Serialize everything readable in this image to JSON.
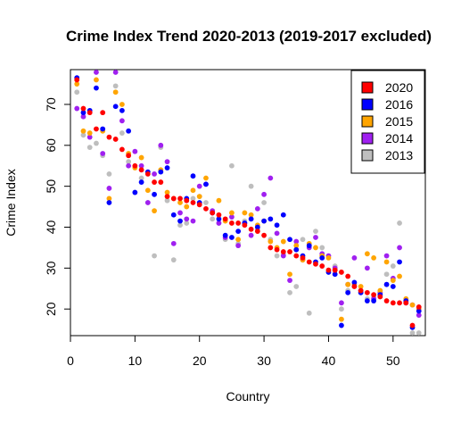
{
  "chart_data": {
    "type": "scatter",
    "title": "Crime Index Trend 2020-2013 (2019-2017 excluded)",
    "xlabel": "Country",
    "ylabel": "Crime Index",
    "xlim": [
      0,
      55
    ],
    "ylim": [
      13.5,
      78.5
    ],
    "x_ticks": [
      0,
      10,
      20,
      30,
      40,
      50
    ],
    "y_ticks": [
      20,
      30,
      40,
      50,
      60,
      70
    ],
    "grid": false,
    "legend_position": "top-right",
    "series": [
      {
        "name": "2020",
        "color": "#ff0000",
        "x": [
          1,
          2,
          3,
          4,
          5,
          6,
          7,
          8,
          9,
          10,
          11,
          12,
          13,
          14,
          15,
          16,
          17,
          18,
          19,
          20,
          21,
          22,
          23,
          24,
          25,
          26,
          27,
          28,
          29,
          30,
          31,
          32,
          33,
          34,
          35,
          36,
          37,
          38,
          39,
          40,
          41,
          42,
          43,
          44,
          45,
          46,
          47,
          48,
          49,
          50,
          51,
          52,
          53,
          54
        ],
        "values": [
          76,
          69,
          68,
          64,
          68,
          62,
          61.5,
          59,
          57.5,
          55,
          54,
          53,
          51,
          51,
          47.5,
          47,
          47,
          46.5,
          46,
          45.5,
          44.5,
          43.5,
          43,
          42,
          41,
          41,
          40.5,
          39.5,
          39,
          38,
          35,
          34.5,
          34,
          34,
          33,
          32.5,
          31.5,
          31,
          30.5,
          29.5,
          29.5,
          29,
          28,
          25.5,
          24.5,
          24,
          23.5,
          23,
          22,
          21.5,
          21.5,
          21.5,
          16,
          20.5
        ]
      },
      {
        "name": "2016",
        "color": "#0000ff",
        "x": [
          1,
          2,
          3,
          4,
          5,
          6,
          7,
          8,
          9,
          10,
          11,
          12,
          13,
          14,
          15,
          16,
          17,
          18,
          19,
          20,
          21,
          22,
          23,
          24,
          25,
          26,
          27,
          28,
          29,
          30,
          31,
          32,
          33,
          34,
          35,
          36,
          37,
          38,
          39,
          40,
          41,
          42,
          43,
          44,
          45,
          46,
          47,
          48,
          49,
          50,
          51,
          52,
          53,
          54
        ],
        "values": [
          76.5,
          68,
          68.5,
          74,
          64,
          46,
          69.5,
          68.5,
          63.5,
          48.5,
          51,
          53.5,
          48,
          53.5,
          54.5,
          43,
          41.5,
          47,
          52.5,
          46,
          50.5,
          43.5,
          42,
          38,
          37.5,
          39,
          41,
          42,
          40,
          41.5,
          42,
          40.5,
          43,
          37,
          34.5,
          33,
          35.5,
          31.5,
          32.5,
          29,
          28.5,
          16,
          24,
          26.5,
          24,
          22,
          22,
          23.5,
          26,
          25.5,
          31.5,
          22,
          15.5,
          19.5
        ]
      },
      {
        "name": "2015",
        "color": "#ffa500",
        "x": [
          1,
          2,
          3,
          4,
          5,
          6,
          7,
          8,
          9,
          10,
          11,
          12,
          13,
          14,
          15,
          16,
          17,
          18,
          19,
          20,
          21,
          22,
          23,
          24,
          25,
          26,
          27,
          28,
          29,
          30,
          31,
          32,
          33,
          34,
          35,
          36,
          37,
          38,
          39,
          40,
          41,
          42,
          43,
          44,
          45,
          46,
          47,
          48,
          49,
          50,
          51,
          52,
          53,
          54
        ],
        "values": [
          75,
          63.5,
          63,
          76,
          63.5,
          47,
          73,
          70,
          58,
          54.5,
          57,
          49,
          44,
          54,
          48.5,
          47,
          46,
          45,
          49,
          47.5,
          52,
          43.5,
          46.5,
          41.5,
          43.5,
          37,
          43.5,
          43,
          40.5,
          41.5,
          36.5,
          35,
          36.5,
          28.5,
          35.5,
          32,
          36,
          35,
          33,
          32.5,
          29.5,
          17.5,
          26,
          26,
          25.5,
          33.5,
          32.5,
          24.5,
          31.5,
          27,
          28,
          22.5,
          21,
          20
        ]
      },
      {
        "name": "2014",
        "color": "#a020f0",
        "x": [
          1,
          2,
          3,
          4,
          5,
          6,
          7,
          8,
          9,
          10,
          11,
          12,
          13,
          14,
          15,
          16,
          17,
          18,
          19,
          20,
          21,
          22,
          23,
          24,
          25,
          26,
          27,
          28,
          29,
          30,
          31,
          32,
          33,
          34,
          35,
          36,
          37,
          38,
          39,
          40,
          41,
          42,
          43,
          44,
          45,
          46,
          47,
          48,
          49,
          50,
          51,
          52,
          53,
          54
        ],
        "values": [
          69,
          67,
          62,
          78,
          58,
          49.5,
          78.5,
          66,
          55,
          58.5,
          55,
          46,
          53,
          60,
          56,
          36,
          43.5,
          42,
          41.5,
          50,
          50.5,
          44,
          41,
          37.5,
          42.5,
          35.5,
          41,
          38,
          44.5,
          48,
          52,
          38.5,
          33,
          27,
          36.5,
          32,
          35,
          37.5,
          33.5,
          33,
          30,
          21.5,
          26,
          32.5,
          24.5,
          30,
          22.5,
          24,
          33,
          27.5,
          35,
          21.5,
          21,
          18.5
        ]
      },
      {
        "name": "2013",
        "color": "#bebebe",
        "x": [
          1,
          2,
          3,
          4,
          5,
          6,
          7,
          8,
          9,
          10,
          11,
          12,
          13,
          14,
          15,
          16,
          17,
          18,
          19,
          20,
          21,
          22,
          23,
          24,
          25,
          26,
          27,
          28,
          29,
          30,
          31,
          32,
          33,
          34,
          35,
          36,
          37,
          38,
          39,
          40,
          41,
          42,
          43,
          44,
          45,
          46,
          47,
          48,
          49,
          50,
          51,
          52,
          53,
          54
        ],
        "values": [
          73,
          62.5,
          59.5,
          60.5,
          57.5,
          53,
          74.5,
          63,
          56,
          48.5,
          52,
          46,
          33,
          59.5,
          46.5,
          32,
          40.5,
          41,
          47,
          47.5,
          46,
          42,
          41,
          37,
          55,
          36,
          41.5,
          50,
          39.5,
          46,
          37,
          33,
          33.5,
          24,
          25.5,
          37,
          19,
          39,
          35,
          29.5,
          30.5,
          20,
          24.5,
          25.5,
          24,
          22.5,
          23,
          24,
          28.5,
          30.5,
          41,
          22,
          14,
          13.5
        ]
      }
    ]
  }
}
